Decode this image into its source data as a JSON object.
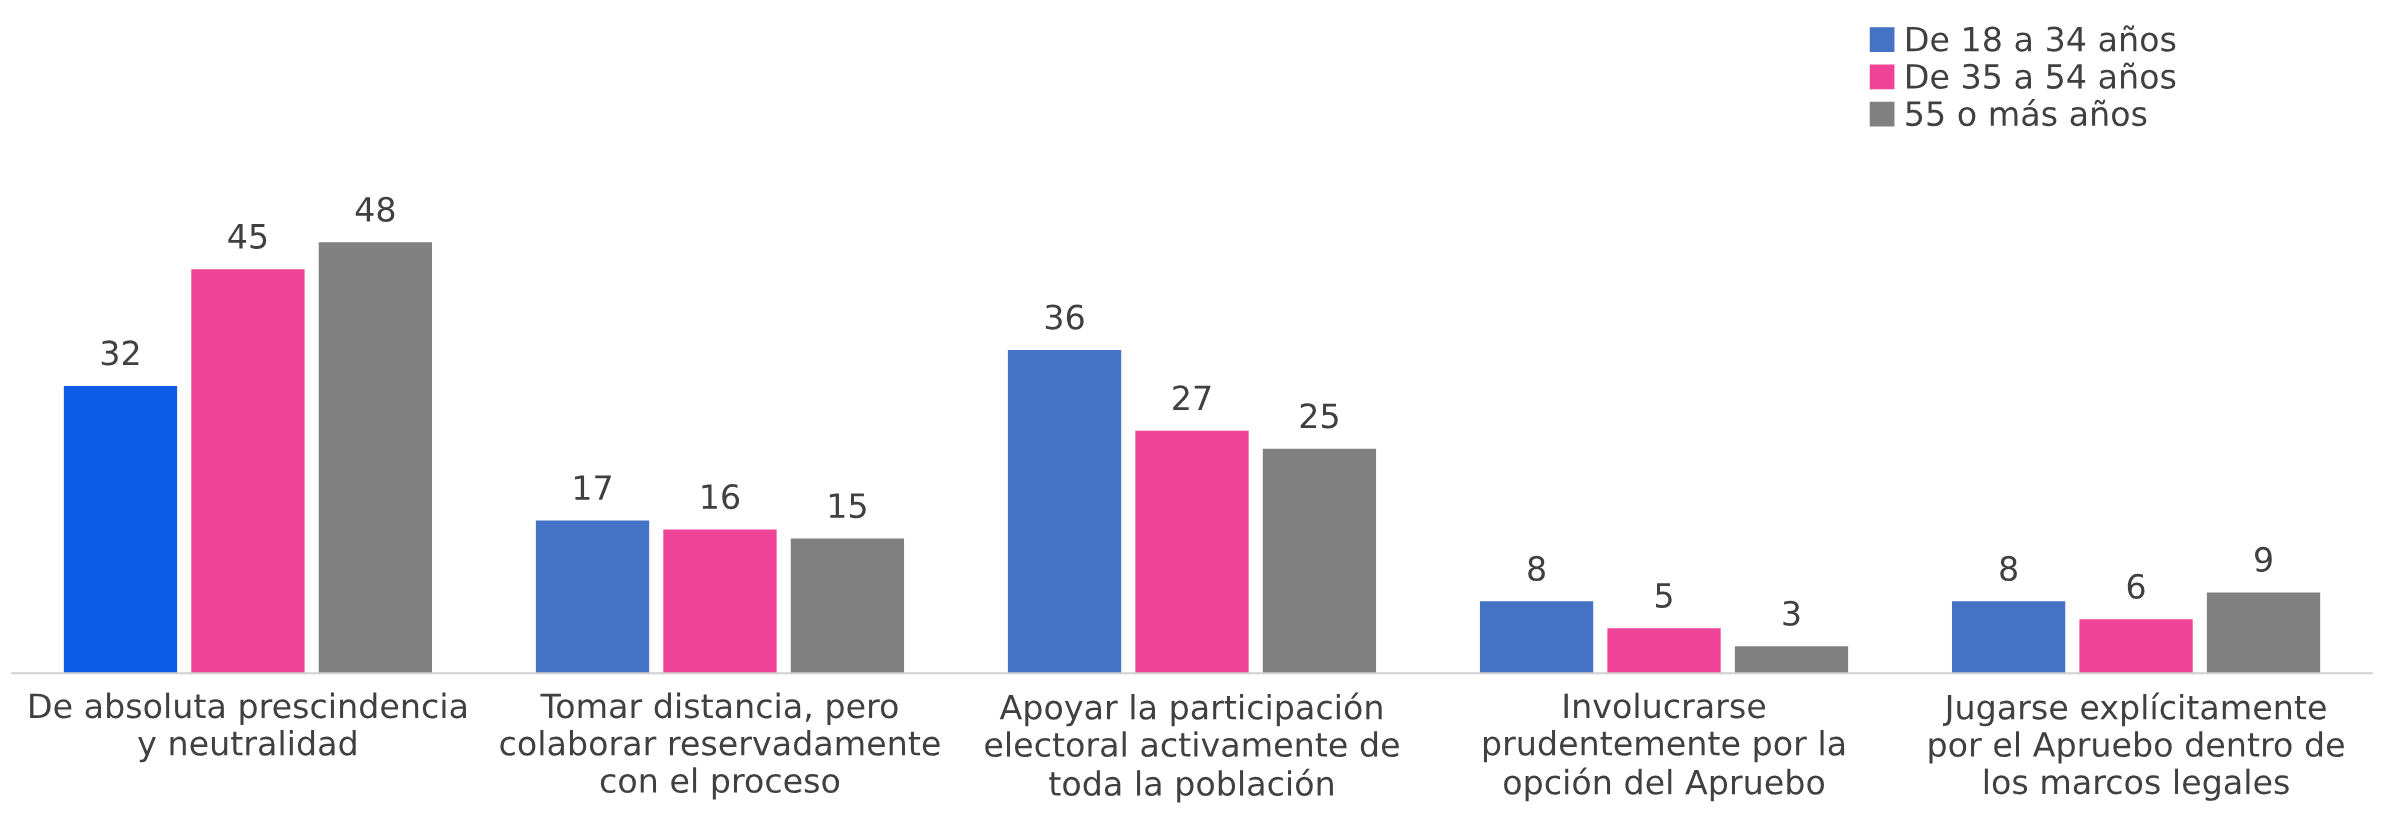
{
  "chart_data": {
    "type": "bar",
    "categories": [
      "De absoluta prescindencia\ny neutralidad",
      "Tomar distancia, pero\ncolaborar reservadamente\ncon el proceso",
      "Apoyar la participación\nelectoral activamente de\ntoda la población",
      "Involucrarse\nprudentemente por la\nopción del Apruebo",
      "Jugarse explícitamente\npor el Apruebo dentro de\nlos marcos legales"
    ],
    "series": [
      {
        "name": "De 18 a 34 años",
        "color": "#4472c4",
        "colors": [
          "#0f5ce6",
          "#4472c4",
          "#4472c4",
          "#4472c4",
          "#4472c4"
        ],
        "values": [
          32,
          17,
          36,
          8,
          8
        ]
      },
      {
        "name": "De 35 a 54 años",
        "color": "#ee4396",
        "values": [
          45,
          16,
          27,
          5,
          6
        ]
      },
      {
        "name": "55 o más años",
        "color": "#808080",
        "values": [
          48,
          15,
          25,
          3,
          9
        ]
      }
    ],
    "data_labels": true,
    "legend": "top right",
    "grid": false
  }
}
